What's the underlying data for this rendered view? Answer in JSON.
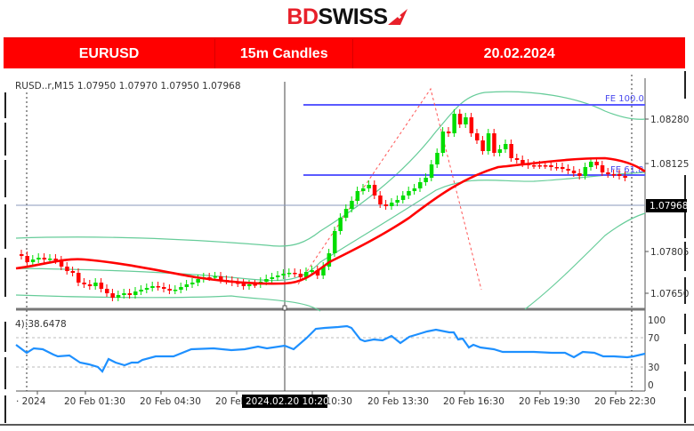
{
  "brand": {
    "bd": "BD",
    "swiss": "SWISS"
  },
  "header": {
    "symbol": "EURUSD",
    "timeframe": "15m Candles",
    "date": "20.02.2024"
  },
  "chart": {
    "info_line": "RUSD..r,M15  1.07950 1.07970 1.07950 1.07968",
    "osc_label": "4):38.6478",
    "crosshair_time": "2024.02.20 10:20",
    "current_price": "1.07968",
    "fib_labels": {
      "fe100": "FE 100.0",
      "fe618": "FE 61.8"
    }
  },
  "chart_data": {
    "type": "candlestick",
    "title": "EURUSD 15m Candles 20.02.2024",
    "price_axis": {
      "ticks": [
        "1.08280",
        "1.08125",
        "1.07968",
        "1.07805",
        "1.07650"
      ],
      "values": [
        1.0828,
        1.08125,
        1.07968,
        1.07805,
        1.0765
      ]
    },
    "time_axis": {
      "ticks": [
        "2024",
        "20 Feb 01:30",
        "20 Feb 04:30",
        "20 Feb 07:30",
        "20 Feb 10:30",
        "20 Feb 13:30",
        "20 Feb 16:30",
        "20 Feb 19:30",
        "20 Feb 22:30"
      ]
    },
    "horizontal_lines": [
      {
        "label": "FE 100.0",
        "price": 1.08325,
        "color": "#5a5aff"
      },
      {
        "label": "FE 61.8",
        "price": 1.08085,
        "color": "#5a5aff"
      },
      {
        "label": "current",
        "price": 1.07968,
        "color": "#8899bb"
      }
    ],
    "oscillator": {
      "label": "4):38.6478",
      "levels": [
        100,
        70,
        30,
        0
      ],
      "value": 38.6478
    },
    "colors": {
      "bull": "#00dd00",
      "bear": "#ff0000",
      "ma": "#ff0000",
      "bands": "#66cc99",
      "osc": "#1e90ff"
    }
  }
}
